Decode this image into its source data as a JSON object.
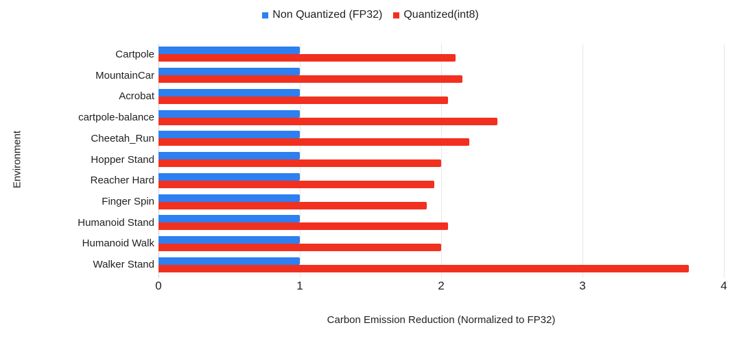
{
  "chart_data": {
    "type": "bar",
    "orientation": "horizontal",
    "categories": [
      "Cartpole",
      "MountainCar",
      "Acrobat",
      "cartpole-balance",
      "Cheetah_Run",
      "Hopper Stand",
      "Reacher Hard",
      "Finger Spin",
      "Humanoid Stand",
      "Humanoid Walk",
      "Walker Stand"
    ],
    "series": [
      {
        "name": "Non Quantized (FP32)",
        "color": "#2e7ff0",
        "values": [
          1.0,
          1.0,
          1.0,
          1.0,
          1.0,
          1.0,
          1.0,
          1.0,
          1.0,
          1.0,
          1.0
        ]
      },
      {
        "name": "Quantized(int8)",
        "color": "#f23020",
        "values": [
          2.1,
          2.15,
          2.05,
          2.4,
          2.2,
          2.0,
          1.95,
          1.9,
          2.05,
          2.0,
          3.75
        ]
      }
    ],
    "xlabel": "Carbon Emission Reduction (Normalized to FP32)",
    "ylabel": "Environment",
    "xlim": [
      0,
      4
    ],
    "x_ticks": [
      "0",
      "1",
      "2",
      "3",
      "4"
    ],
    "grid": true,
    "legend_position": "top",
    "gridline_color": "#e6e6e6",
    "zero_line_color": "#d0d0d0"
  }
}
